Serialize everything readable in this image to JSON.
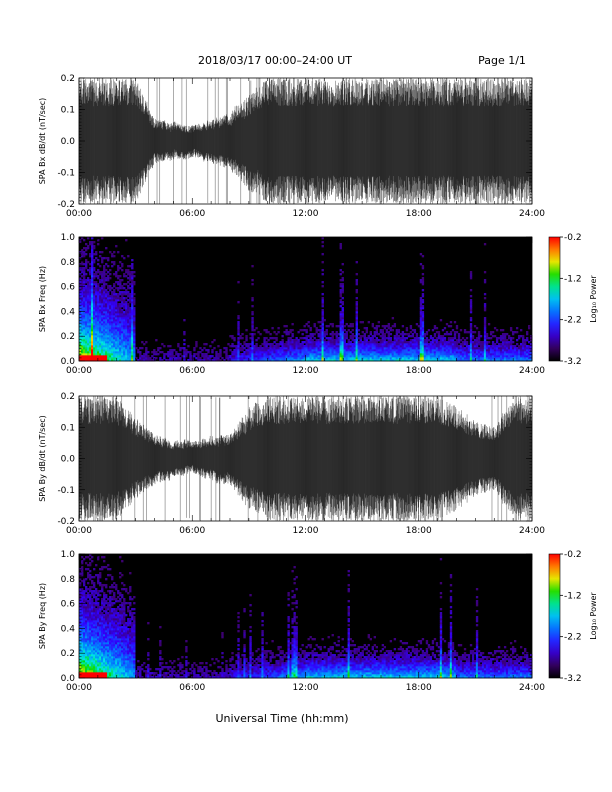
{
  "header": {
    "title": "2018/03/17  00:00–24:00 UT",
    "page": "Page 1/1"
  },
  "xlabel": "Universal Time (hh:mm)",
  "chart_data": [
    {
      "type": "line",
      "ylabel": "SPA Bx dB/dt (nT/sec)",
      "xlim": [
        0,
        24
      ],
      "ylim": [
        -0.2,
        0.2
      ],
      "xticks": [
        "00:00",
        "06:00",
        "12:00",
        "18:00",
        "24:00"
      ],
      "yticks": [
        "-0.2",
        "-0.1",
        "0.0",
        "0.1",
        "0.2"
      ],
      "envelope_hours": [
        0,
        1,
        2,
        3,
        4,
        5,
        6,
        7,
        8,
        9,
        10,
        11,
        12,
        13,
        14,
        15,
        16,
        17,
        18,
        19,
        20,
        21,
        22,
        23,
        24
      ],
      "envelope_amplitude": [
        0.2,
        0.2,
        0.2,
        0.2,
        0.07,
        0.06,
        0.05,
        0.07,
        0.09,
        0.15,
        0.2,
        0.2,
        0.2,
        0.2,
        0.2,
        0.2,
        0.2,
        0.2,
        0.2,
        0.2,
        0.2,
        0.2,
        0.2,
        0.2,
        0.2
      ]
    },
    {
      "type": "heatmap",
      "ylabel": "SPA Bx Freq (Hz)",
      "xlim": [
        0,
        24
      ],
      "ylim": [
        0.0,
        1.0
      ],
      "xticks": [
        "00:00",
        "06:00",
        "12:00",
        "18:00",
        "24:00"
      ],
      "yticks": [
        "0.0",
        "0.2",
        "0.4",
        "0.6",
        "0.8",
        "1.0"
      ],
      "colorbar": {
        "label": "Log₁₀ Power",
        "ticks": [
          "-0.2",
          "-1.2",
          "-2.2",
          "-3.2"
        ],
        "range": [
          -3.2,
          -0.2
        ]
      }
    },
    {
      "type": "line",
      "ylabel": "SPA By dB/dt (nT/sec)",
      "xlim": [
        0,
        24
      ],
      "ylim": [
        -0.2,
        0.2
      ],
      "xticks": [
        "00:00",
        "06:00",
        "12:00",
        "18:00",
        "24:00"
      ],
      "yticks": [
        "-0.2",
        "-0.1",
        "0.0",
        "0.1",
        "0.2"
      ],
      "envelope_hours": [
        0,
        1,
        2,
        3,
        4,
        5,
        6,
        7,
        8,
        9,
        10,
        11,
        12,
        13,
        14,
        15,
        16,
        17,
        18,
        19,
        20,
        21,
        22,
        23,
        24
      ],
      "envelope_amplitude": [
        0.2,
        0.2,
        0.2,
        0.13,
        0.08,
        0.06,
        0.05,
        0.07,
        0.08,
        0.16,
        0.2,
        0.2,
        0.2,
        0.2,
        0.2,
        0.2,
        0.2,
        0.2,
        0.2,
        0.2,
        0.17,
        0.12,
        0.1,
        0.2,
        0.2
      ]
    },
    {
      "type": "heatmap",
      "ylabel": "SPA By Freq (Hz)",
      "xlim": [
        0,
        24
      ],
      "ylim": [
        0.0,
        1.0
      ],
      "xticks": [
        "00:00",
        "06:00",
        "12:00",
        "18:00",
        "24:00"
      ],
      "yticks": [
        "0.0",
        "0.2",
        "0.4",
        "0.6",
        "0.8",
        "1.0"
      ],
      "colorbar": {
        "label": "Log₁₀ Power",
        "ticks": [
          "-0.2",
          "-1.2",
          "-2.2",
          "-3.2"
        ],
        "range": [
          -3.2,
          -0.2
        ]
      }
    }
  ]
}
